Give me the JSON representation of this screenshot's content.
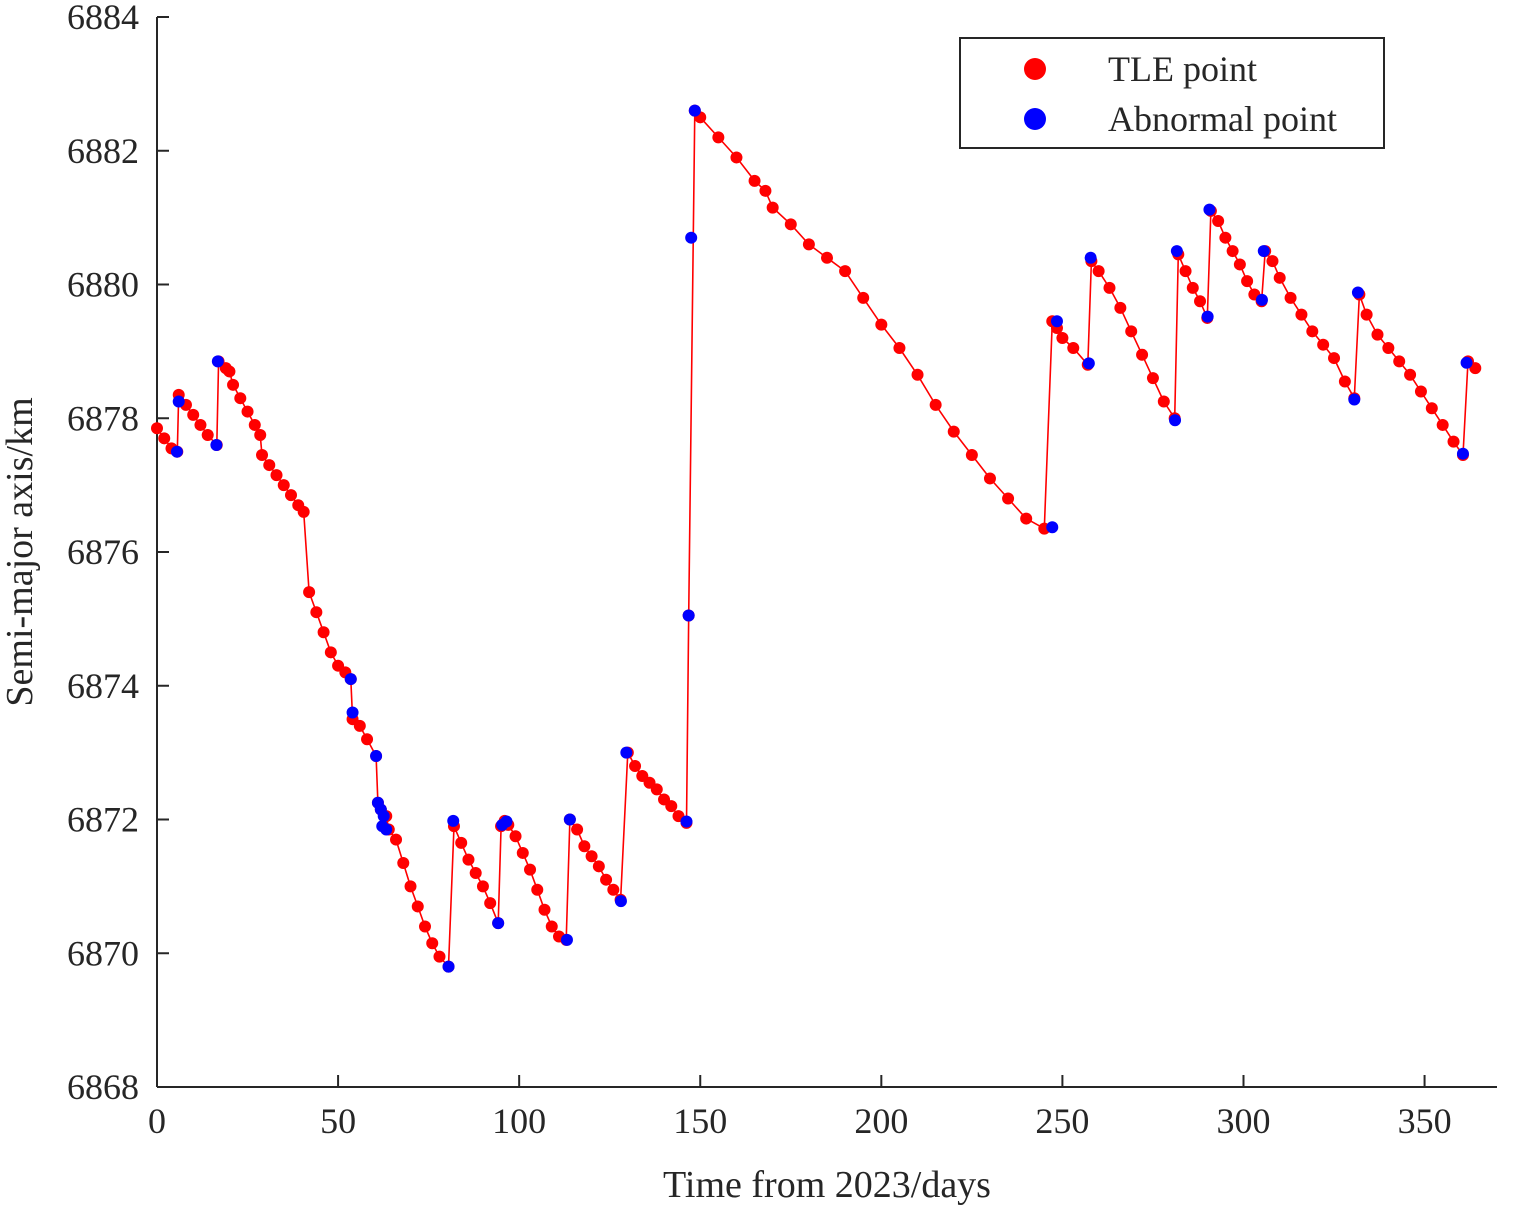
{
  "chart_data": {
    "type": "scatter",
    "title": "",
    "xlabel": "Time from 2023/days",
    "ylabel": "Semi-major axis/km",
    "xlim": [
      0,
      370
    ],
    "ylim": [
      6868,
      6884
    ],
    "xticks": [
      0,
      50,
      100,
      150,
      200,
      250,
      300,
      350
    ],
    "yticks": [
      6868,
      6870,
      6872,
      6874,
      6876,
      6878,
      6880,
      6882,
      6884
    ],
    "xtick_labels": [
      "0",
      "50",
      "100",
      "150",
      "200",
      "250",
      "300",
      "350"
    ],
    "ytick_labels": [
      "6868",
      "6870",
      "6872",
      "6874",
      "6876",
      "6878",
      "6880",
      "6882",
      "6884"
    ],
    "grid": false,
    "legend_position": "top-right",
    "colors": {
      "tle": "#ff0000",
      "abnormal": "#0000ff",
      "line": "#ff0000",
      "axis": "#262626"
    },
    "series": [
      {
        "name": "TLE point",
        "marker": "circle",
        "color": "#ff0000",
        "connected_with_line": true,
        "x": [
          0,
          2,
          4,
          5.6,
          6,
          8,
          10,
          12,
          14,
          16.5,
          17,
          19,
          20,
          21,
          23,
          25,
          27,
          28.5,
          29,
          31,
          33,
          35,
          37,
          39,
          40.5,
          42,
          44,
          46,
          48,
          50,
          52,
          53.5,
          54,
          56,
          58,
          60.5,
          61,
          61.8,
          62.5,
          63.3,
          64,
          66,
          68,
          70,
          72,
          74,
          76,
          78,
          80.5,
          82,
          84,
          86,
          88,
          90,
          92,
          94.2,
          95,
          96,
          97,
          99,
          101,
          103,
          105,
          107,
          109,
          111,
          113,
          114,
          116,
          118,
          120,
          122,
          124,
          126,
          128,
          130,
          132,
          134,
          136,
          138,
          140,
          142,
          144,
          146.2,
          146.8,
          148.5,
          150,
          155,
          160,
          165,
          168,
          170,
          175,
          180,
          185,
          190,
          195,
          200,
          205,
          210,
          215,
          220,
          225,
          230,
          235,
          240,
          245,
          247.2,
          248.5,
          250,
          253,
          257,
          258,
          260,
          263,
          266,
          269,
          272,
          275,
          278,
          281,
          282,
          284,
          286,
          288,
          290,
          291,
          293,
          295,
          297,
          299,
          301,
          303,
          305,
          306,
          308,
          310,
          313,
          316,
          319,
          322,
          325,
          328,
          330.6,
          332,
          334,
          337,
          340,
          343,
          346,
          349,
          352,
          355,
          358,
          360.6,
          362,
          364
        ],
        "y": [
          6877.85,
          6877.7,
          6877.55,
          6877.5,
          6878.35,
          6878.2,
          6878.05,
          6877.9,
          6877.75,
          6877.6,
          6878.85,
          6878.75,
          6878.7,
          6878.5,
          6878.3,
          6878.1,
          6877.9,
          6877.75,
          6877.45,
          6877.3,
          6877.15,
          6877.0,
          6876.85,
          6876.7,
          6876.6,
          6875.4,
          6875.1,
          6874.8,
          6874.5,
          6874.3,
          6874.2,
          6874.1,
          6873.5,
          6873.4,
          6873.2,
          6872.95,
          6872.25,
          6872.15,
          6871.9,
          6872.05,
          6871.85,
          6871.7,
          6871.35,
          6871.0,
          6870.7,
          6870.4,
          6870.15,
          6869.95,
          6869.8,
          6871.9,
          6871.65,
          6871.4,
          6871.2,
          6871.0,
          6870.75,
          6870.45,
          6871.9,
          6871.98,
          6871.92,
          6871.75,
          6871.5,
          6871.25,
          6870.95,
          6870.65,
          6870.4,
          6870.25,
          6870.2,
          6872.0,
          6871.85,
          6871.6,
          6871.45,
          6871.3,
          6871.1,
          6870.95,
          6870.8,
          6873.0,
          6872.8,
          6872.65,
          6872.55,
          6872.45,
          6872.3,
          6872.2,
          6872.05,
          6871.95,
          6875.05,
          6882.6,
          6882.5,
          6882.2,
          6881.9,
          6881.55,
          6881.4,
          6881.15,
          6880.9,
          6880.6,
          6880.4,
          6880.2,
          6879.8,
          6879.4,
          6879.05,
          6878.65,
          6878.2,
          6877.8,
          6877.45,
          6877.1,
          6876.8,
          6876.5,
          6876.35,
          6879.45,
          6879.35,
          6879.2,
          6879.05,
          6878.8,
          6880.35,
          6880.2,
          6879.95,
          6879.65,
          6879.3,
          6878.95,
          6878.6,
          6878.25,
          6878.0,
          6880.45,
          6880.2,
          6879.95,
          6879.75,
          6879.5,
          6881.1,
          6880.95,
          6880.7,
          6880.5,
          6880.3,
          6880.05,
          6879.85,
          6879.75,
          6880.5,
          6880.35,
          6880.1,
          6879.8,
          6879.55,
          6879.3,
          6879.1,
          6878.9,
          6878.55,
          6878.3,
          6879.85,
          6879.55,
          6879.25,
          6879.05,
          6878.85,
          6878.65,
          6878.4,
          6878.15,
          6877.9,
          6877.65,
          6877.45,
          6878.85,
          6878.75
        ]
      },
      {
        "name": "Abnormal point",
        "marker": "circle",
        "color": "#0000ff",
        "x": [
          5.5,
          6,
          16.4,
          16.8,
          53.5,
          54,
          60.5,
          61,
          61.8,
          62.2,
          62.6,
          63.3,
          80.5,
          81.8,
          94.2,
          95.3,
          96.5,
          113.2,
          114,
          128.1,
          129.6,
          146.2,
          146.8,
          147.5,
          148.5,
          247.2,
          248.5,
          257.3,
          257.8,
          281.1,
          281.6,
          290.1,
          290.6,
          305.1,
          305.6,
          330.6,
          331.6,
          360.6,
          361.6
        ],
        "y": [
          6877.5,
          6878.25,
          6877.6,
          6878.85,
          6874.1,
          6873.6,
          6872.95,
          6872.25,
          6872.15,
          6871.9,
          6872.05,
          6871.85,
          6869.8,
          6871.98,
          6870.45,
          6871.92,
          6871.97,
          6870.2,
          6872.0,
          6870.78,
          6873.0,
          6871.97,
          6875.05,
          6880.7,
          6882.6,
          6876.37,
          6879.45,
          6878.82,
          6880.4,
          6877.97,
          6880.5,
          6879.52,
          6881.12,
          6879.77,
          6880.5,
          6878.28,
          6879.88,
          6877.47,
          6878.83
        ]
      }
    ]
  }
}
